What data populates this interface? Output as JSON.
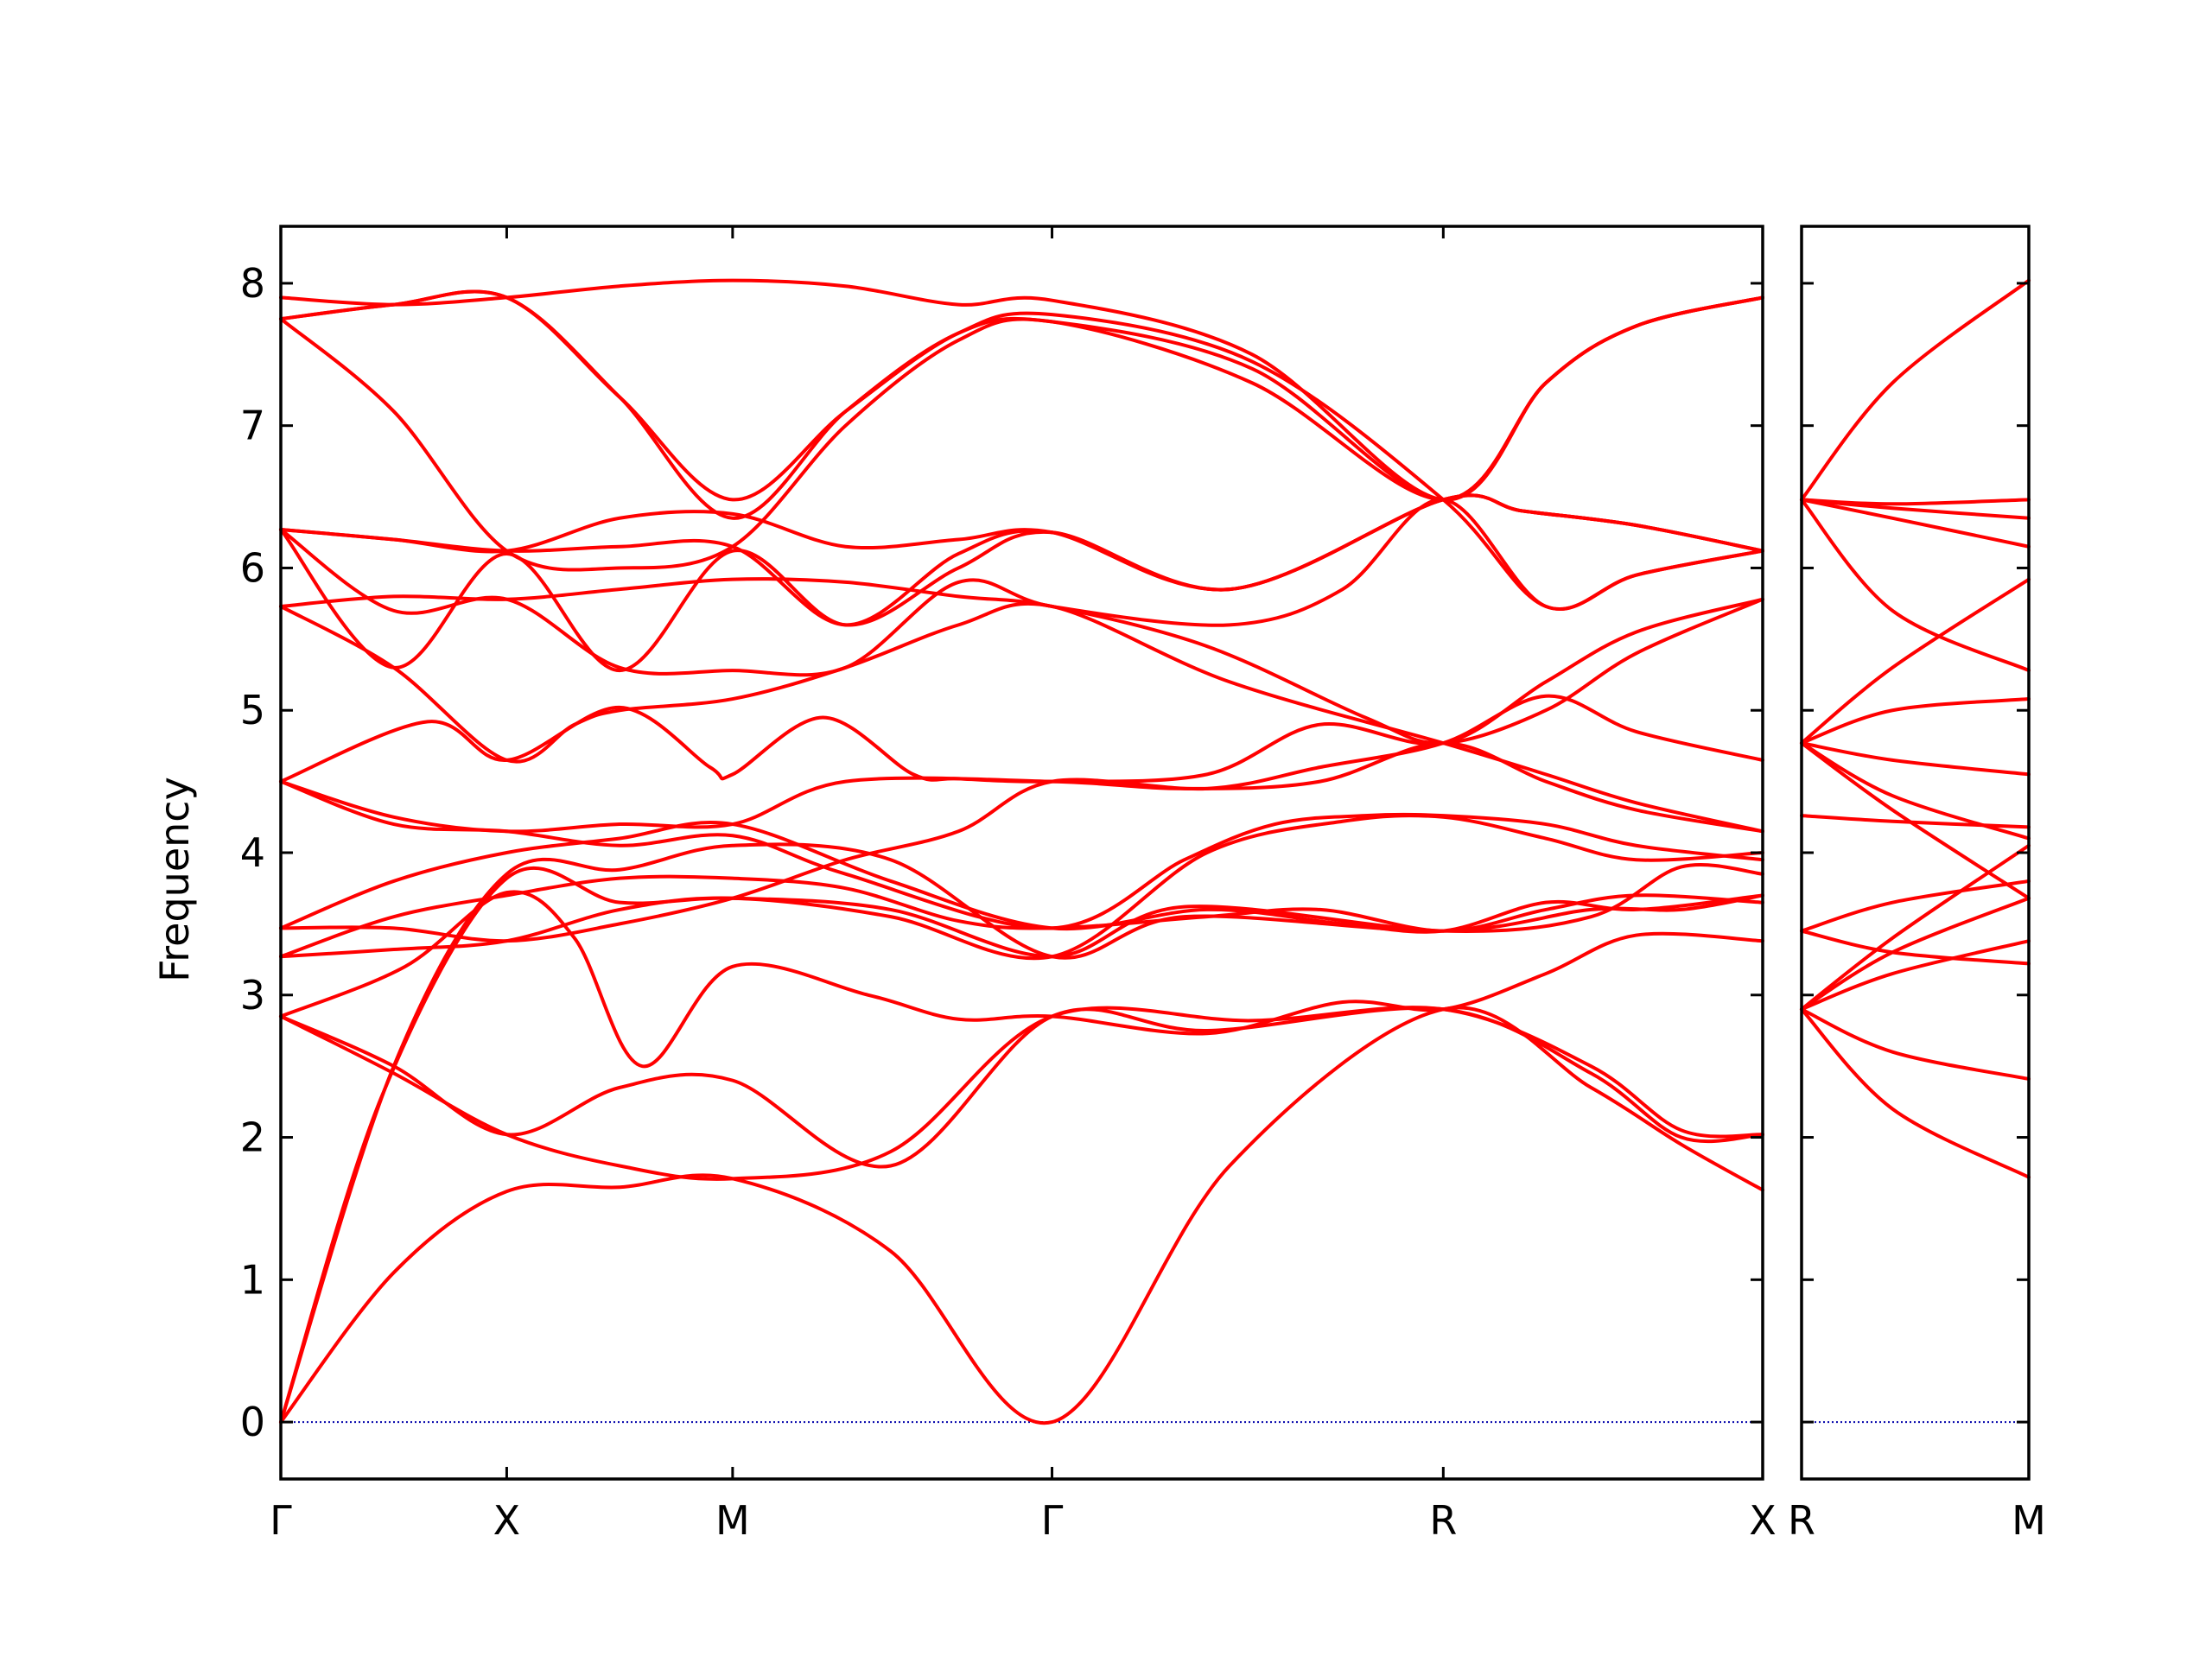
{
  "chart_data": {
    "type": "line",
    "ylabel": "Frequency",
    "ylim": [
      -0.4,
      8.4
    ],
    "yticks": [
      0,
      1,
      2,
      3,
      4,
      5,
      6,
      7,
      8
    ],
    "ytick_labels": [
      "0",
      "1",
      "2",
      "3",
      "4",
      "5",
      "6",
      "7",
      "8"
    ],
    "line_color": "#ff0000",
    "zero_line_color": "#0000aa",
    "panels": [
      {
        "id": "main",
        "x_ticks": [
          {
            "x": 0,
            "label": "Γ"
          },
          {
            "x": 1,
            "label": "X"
          },
          {
            "x": 2,
            "label": "M"
          },
          {
            "x": 3.414,
            "label": "Γ"
          },
          {
            "x": 5.146,
            "label": "R"
          },
          {
            "x": 6.56,
            "label": "X"
          }
        ],
        "xlim": [
          0,
          6.56
        ],
        "series": [
          {
            "x": [
              0,
              0.5,
              1,
              1.5,
              2,
              2.7,
              3.414,
              4.2,
              5.146,
              5.8,
              6.2,
              6.56
            ],
            "y": [
              0,
              1.05,
              1.62,
              1.65,
              1.71,
              1.2,
              0,
              1.8,
              2.9,
              2.35,
              1.95,
              1.63
            ]
          },
          {
            "x": [
              0,
              0.45,
              1,
              1.5,
              2,
              2.7,
              3.414,
              4.0,
              5.146,
              5.8,
              6.2,
              6.56
            ],
            "y": [
              0,
              2.3,
              3.82,
              3.65,
              3.68,
              3.6,
              3.27,
              3.62,
              3.45,
              3.55,
              3.9,
              3.85
            ]
          },
          {
            "x": [
              0,
              0.5,
              1,
              1.5,
              2,
              2.7,
              3.414,
              4.0,
              5.146,
              5.8,
              6.2,
              6.56
            ],
            "y": [
              0,
              2.5,
              3.85,
              3.88,
              4.05,
              3.95,
              3.27,
              3.55,
              3.45,
              3.6,
              3.6,
              3.7
            ]
          },
          {
            "x": [
              0,
              0.5,
              1,
              1.5,
              2,
              2.7,
              3.414,
              4.1,
              5.146,
              5.8,
              6.2,
              6.56
            ],
            "y": [
              2.85,
              2.5,
              2.02,
              2.35,
              2.4,
              1.8,
              2.85,
              2.75,
              2.9,
              2.45,
              2.0,
              2.02
            ]
          },
          {
            "x": [
              0,
              0.5,
              1,
              1.5,
              2,
              2.7,
              3.414,
              4.3,
              5.146,
              5.8,
              6.2,
              6.56
            ],
            "y": [
              2.85,
              2.45,
              2.02,
              1.8,
              1.71,
              1.9,
              2.85,
              2.82,
              2.9,
              2.5,
              2.05,
              2.02
            ]
          },
          {
            "x": [
              0,
              0.55,
              1,
              1.3,
              1.6,
              2,
              2.6,
              3.0,
              3.414,
              4.1,
              4.7,
              5.146,
              5.6,
              6.0,
              6.56
            ],
            "y": [
              2.85,
              3.2,
              3.72,
              3.4,
              2.5,
              3.2,
              3.0,
              2.83,
              2.85,
              2.73,
              2.95,
              2.9,
              3.15,
              3.42,
              3.38
            ]
          },
          {
            "x": [
              0,
              0.5,
              1,
              1.5,
              2,
              2.7,
              3.414,
              4.1,
              4.7,
              5.146,
              5.6,
              6.0,
              6.56
            ],
            "y": [
              3.27,
              3.32,
              3.38,
              3.6,
              3.68,
              3.55,
              3.27,
              4.0,
              4.22,
              4.25,
              4.1,
              3.95,
              4.0
            ]
          },
          {
            "x": [
              0,
              0.5,
              1,
              1.5,
              2,
              2.5,
              3.0,
              3.414,
              4.1,
              4.6,
              5.146,
              5.6,
              6.0,
              6.56
            ],
            "y": [
              3.47,
              3.47,
              3.38,
              3.5,
              3.68,
              3.95,
              4.15,
              4.5,
              4.45,
              4.6,
              4.77,
              5.1,
              4.85,
              4.65
            ]
          },
          {
            "x": [
              0,
              0.5,
              1,
              1.5,
              2,
              2.5,
              3.0,
              3.414,
              4.1,
              4.6,
              5.146,
              5.6,
              6.0,
              6.56
            ],
            "y": [
              3.27,
              3.55,
              3.7,
              3.82,
              3.82,
              3.75,
              3.52,
              3.47,
              3.55,
              3.6,
              3.45,
              3.6,
              3.7,
              3.65
            ]
          },
          {
            "x": [
              0,
              0.5,
              1,
              1.5,
              2,
              2.7,
              3.414,
              4.1,
              4.7,
              5.146,
              5.6,
              6.0,
              6.56
            ],
            "y": [
              3.47,
              3.8,
              4.0,
              4.1,
              4.2,
              3.8,
              3.47,
              3.6,
              3.5,
              3.45,
              3.65,
              3.6,
              3.7
            ]
          },
          {
            "x": [
              0,
              0.5,
              1,
              1.5,
              2,
              2.5,
              3.414,
              4.0,
              4.6,
              5.146,
              5.6,
              6.0,
              6.56
            ],
            "y": [
              4.5,
              4.25,
              4.15,
              4.2,
              4.2,
              4.5,
              4.5,
              4.45,
              4.5,
              4.77,
              4.5,
              4.3,
              4.15
            ]
          },
          {
            "x": [
              0,
              0.5,
              1,
              1.5,
              2,
              2.5,
              3.414,
              4.0,
              4.4,
              4.8,
              5.146,
              5.6,
              6.0,
              6.56
            ],
            "y": [
              4.5,
              4.2,
              4.15,
              4.05,
              4.12,
              3.85,
              3.47,
              3.95,
              4.2,
              4.26,
              4.26,
              4.2,
              4.05,
              3.95
            ]
          },
          {
            "x": [
              0,
              0.65,
              1,
              1.5,
              1.9,
              2.0,
              2.4,
              2.8,
              3.0,
              3.414,
              4.1,
              4.6,
              5.146,
              5.6,
              6.0,
              6.56
            ],
            "y": [
              4.5,
              4.92,
              4.65,
              5.02,
              4.6,
              4.55,
              4.95,
              4.55,
              4.52,
              4.5,
              4.55,
              4.9,
              4.77,
              5.2,
              5.55,
              5.78
            ]
          },
          {
            "x": [
              0,
              0.5,
              1,
              1.3,
              1.5,
              2,
              2.5,
              3.0,
              3.414,
              4.2,
              5.146,
              5.6,
              6.0,
              6.56
            ],
            "y": [
              5.73,
              5.3,
              4.65,
              4.9,
              5.0,
              5.08,
              5.3,
              5.6,
              5.73,
              5.2,
              4.77,
              4.55,
              4.35,
              4.15
            ]
          },
          {
            "x": [
              0,
              0.5,
              1,
              1.5,
              2,
              2.5,
              3.0,
              3.414,
              4.1,
              4.8,
              5.146,
              5.6,
              6.0,
              6.56
            ],
            "y": [
              5.73,
              5.8,
              5.78,
              5.85,
              5.92,
              5.9,
              5.8,
              5.73,
              5.45,
              4.95,
              4.77,
              5.0,
              5.4,
              5.78
            ]
          },
          {
            "x": [
              0,
              0.5,
              1,
              1.5,
              2,
              2.5,
              3.0,
              3.414,
              4.2,
              5.146,
              5.5,
              6.0,
              6.56
            ],
            "y": [
              6.27,
              5.3,
              6.1,
              5.28,
              6.12,
              5.6,
              6.0,
              6.25,
              5.85,
              6.48,
              6.4,
              6.3,
              6.12
            ]
          },
          {
            "x": [
              0,
              0.5,
              1,
              1.5,
              2,
              2.5,
              3.0,
              3.414,
              4.2,
              4.7,
              5.146,
              5.6,
              6.0,
              6.56
            ],
            "y": [
              6.27,
              5.7,
              5.78,
              5.3,
              5.28,
              5.3,
              5.9,
              5.73,
              5.6,
              5.85,
              6.48,
              5.73,
              5.95,
              6.12
            ]
          },
          {
            "x": [
              0,
              0.5,
              1,
              1.5,
              2,
              2.5,
              3.0,
              3.414,
              4.2,
              5.146,
              5.5,
              6.0,
              6.56
            ],
            "y": [
              6.27,
              6.2,
              6.12,
              6.15,
              6.15,
              5.6,
              6.1,
              6.25,
              5.85,
              6.48,
              6.4,
              6.3,
              6.12
            ]
          },
          {
            "x": [
              0,
              0.5,
              1,
              1.5,
              2,
              2.5,
              3.0,
              3.414,
              4.2,
              5.146,
              5.5,
              6.0,
              6.56
            ],
            "y": [
              6.27,
              6.2,
              6.12,
              6.35,
              6.38,
              6.15,
              6.2,
              6.25,
              5.85,
              6.48,
              6.4,
              6.3,
              6.12
            ]
          },
          {
            "x": [
              0,
              0.5,
              1,
              1.5,
              2,
              2.5,
              3.0,
              3.414,
              4.3,
              5.146,
              5.6,
              6.0,
              6.56
            ],
            "y": [
              7.75,
              7.1,
              6.12,
              6.0,
              6.15,
              7.0,
              7.6,
              7.73,
              7.3,
              6.48,
              7.3,
              7.7,
              7.9
            ]
          },
          {
            "x": [
              0,
              0.5,
              1,
              1.5,
              2,
              2.5,
              3.0,
              3.414,
              4.3,
              5.146,
              5.6,
              6.0,
              6.56
            ],
            "y": [
              7.75,
              7.85,
              7.9,
              7.2,
              6.35,
              7.1,
              7.65,
              7.73,
              7.4,
              6.48,
              7.3,
              7.7,
              7.9
            ]
          },
          {
            "x": [
              0,
              0.5,
              1,
              1.5,
              2,
              2.5,
              3.0,
              3.414,
              4.3,
              5.146,
              5.6,
              6.0,
              6.56
            ],
            "y": [
              7.75,
              7.85,
              7.9,
              7.2,
              6.48,
              7.1,
              7.65,
              7.78,
              7.45,
              6.48,
              5.73,
              5.95,
              6.12
            ]
          },
          {
            "x": [
              0,
              0.5,
              1,
              1.5,
              2,
              2.5,
              3.0,
              3.414,
              4.3,
              5.146,
              5.6,
              6.0,
              6.56
            ],
            "y": [
              7.9,
              7.85,
              7.9,
              7.98,
              8.02,
              7.98,
              7.85,
              7.88,
              7.5,
              6.48,
              7.3,
              7.7,
              7.9
            ]
          }
        ]
      },
      {
        "id": "right",
        "x_ticks": [
          {
            "x": 0,
            "label": "R"
          },
          {
            "x": 1,
            "label": "M"
          }
        ],
        "xlim": [
          0,
          1
        ],
        "series": [
          {
            "x": [
              0,
              0.4,
              1
            ],
            "y": [
              2.9,
              2.2,
              1.72
            ]
          },
          {
            "x": [
              0,
              0.4,
              1
            ],
            "y": [
              2.9,
              2.6,
              2.41
            ]
          },
          {
            "x": [
              0,
              0.4,
              1
            ],
            "y": [
              2.9,
              3.3,
              3.68
            ]
          },
          {
            "x": [
              0,
              0.4,
              1
            ],
            "y": [
              2.9,
              3.4,
              4.05
            ]
          },
          {
            "x": [
              0,
              0.4,
              1
            ],
            "y": [
              2.9,
              3.15,
              3.38
            ]
          },
          {
            "x": [
              0,
              0.4,
              1
            ],
            "y": [
              3.45,
              3.3,
              3.22
            ]
          },
          {
            "x": [
              0,
              0.4,
              1
            ],
            "y": [
              3.45,
              3.65,
              3.8
            ]
          },
          {
            "x": [
              0,
              0.4,
              1
            ],
            "y": [
              4.26,
              4.22,
              4.18
            ]
          },
          {
            "x": [
              0,
              0.4,
              1
            ],
            "y": [
              4.77,
              4.3,
              3.68
            ]
          },
          {
            "x": [
              0,
              0.4,
              1
            ],
            "y": [
              4.77,
              4.4,
              4.1
            ]
          },
          {
            "x": [
              0,
              0.4,
              1
            ],
            "y": [
              4.77,
              4.65,
              4.55
            ]
          },
          {
            "x": [
              0,
              0.4,
              1
            ],
            "y": [
              4.77,
              5.0,
              5.08
            ]
          },
          {
            "x": [
              0,
              0.4,
              1
            ],
            "y": [
              4.77,
              5.3,
              5.92
            ]
          },
          {
            "x": [
              0,
              0.4,
              1
            ],
            "y": [
              6.48,
              5.7,
              5.28
            ]
          },
          {
            "x": [
              0,
              0.4,
              1
            ],
            "y": [
              6.48,
              6.35,
              6.15
            ]
          },
          {
            "x": [
              0,
              0.4,
              1
            ],
            "y": [
              6.48,
              6.42,
              6.35
            ]
          },
          {
            "x": [
              0,
              0.4,
              1
            ],
            "y": [
              6.48,
              6.45,
              6.48
            ]
          },
          {
            "x": [
              0,
              0.4,
              1
            ],
            "y": [
              6.48,
              7.3,
              8.02
            ]
          }
        ]
      }
    ]
  }
}
